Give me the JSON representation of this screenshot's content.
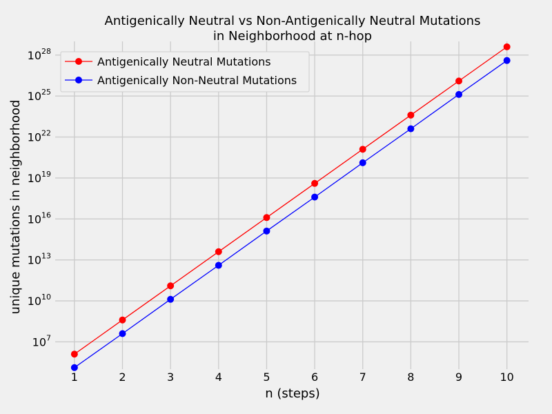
{
  "chart_data": {
    "type": "line",
    "title_lines": [
      "Antigenically Neutral vs Non-Antigenically Neutral Mutations",
      "in Neighborhood at n-hop"
    ],
    "xlabel": "n (steps)",
    "ylabel": "unique mutations in neighborhood",
    "x": [
      1,
      2,
      3,
      4,
      5,
      6,
      7,
      8,
      9,
      10
    ],
    "x_ticks": [
      "1",
      "2",
      "3",
      "4",
      "5",
      "6",
      "7",
      "8",
      "9",
      "10"
    ],
    "xlim": [
      0.6,
      10.45
    ],
    "y_scale": "log",
    "ylim": [
      100000.0,
      1e+29
    ],
    "y_ticks": [
      {
        "base": "10",
        "exp": "7"
      },
      {
        "base": "10",
        "exp": "10"
      },
      {
        "base": "10",
        "exp": "13"
      },
      {
        "base": "10",
        "exp": "16"
      },
      {
        "base": "10",
        "exp": "19"
      },
      {
        "base": "10",
        "exp": "22"
      },
      {
        "base": "10",
        "exp": "25"
      },
      {
        "base": "10",
        "exp": "28"
      }
    ],
    "grid": true,
    "legend_position": "top-left",
    "series": [
      {
        "name": "Antigenically Neutral Mutations",
        "color": "#ff0000",
        "values": [
          1260000.0,
          400000000.0,
          126000000000.0,
          40000000000000.0,
          1.26e+16,
          4e+18,
          1.26e+21,
          4e+23,
          1.26e+26,
          4e+28
        ]
      },
      {
        "name": "Antigenically Non-Neutral Mutations",
        "color": "#0000ff",
        "values": [
          130000.0,
          40000000.0,
          13000000000.0,
          4000000000000.0,
          1300000000000000.0,
          4e+17,
          1.3e+20,
          4e+22,
          1.3e+25,
          4e+27
        ]
      }
    ]
  }
}
